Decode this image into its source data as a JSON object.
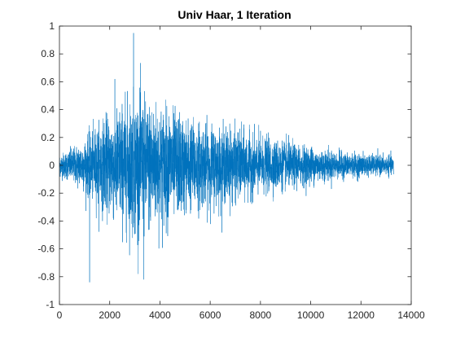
{
  "chart_data": {
    "type": "line",
    "title": "Univ Haar, 1 Iteration",
    "xlabel": "",
    "ylabel": "",
    "xlim": [
      0,
      14000
    ],
    "ylim": [
      -1,
      1
    ],
    "xticks": [
      0,
      2000,
      4000,
      6000,
      8000,
      10000,
      12000,
      14000
    ],
    "yticks": [
      1,
      0.8,
      0.6,
      0.4,
      0.2,
      0,
      -0.2,
      -0.4,
      -0.6,
      -0.8,
      -1
    ],
    "grid": false,
    "legend": "none",
    "series": [
      {
        "color": "#0072BD",
        "n_samples": 13300,
        "x_range": [
          1,
          13300
        ],
        "notable_points": [
          {
            "x": 2950,
            "y": 0.95
          },
          {
            "x": 1200,
            "y": -0.84
          },
          {
            "x": 3350,
            "y": -0.82
          }
        ],
        "amplitude_envelope": {
          "x": [
            0,
            500,
            1000,
            1500,
            2000,
            2500,
            3000,
            3500,
            4000,
            4500,
            5000,
            5500,
            6000,
            6500,
            7000,
            7500,
            8000,
            8500,
            9000,
            9500,
            10000,
            10500,
            11000,
            11500,
            12000,
            12500,
            13000,
            13300
          ],
          "y": [
            0.12,
            0.18,
            0.28,
            0.42,
            0.55,
            0.65,
            0.75,
            0.7,
            0.65,
            0.58,
            0.5,
            0.46,
            0.42,
            0.4,
            0.38,
            0.34,
            0.3,
            0.27,
            0.25,
            0.22,
            0.2,
            0.17,
            0.15,
            0.13,
            0.12,
            0.11,
            0.1,
            0.1
          ]
        }
      }
    ]
  }
}
